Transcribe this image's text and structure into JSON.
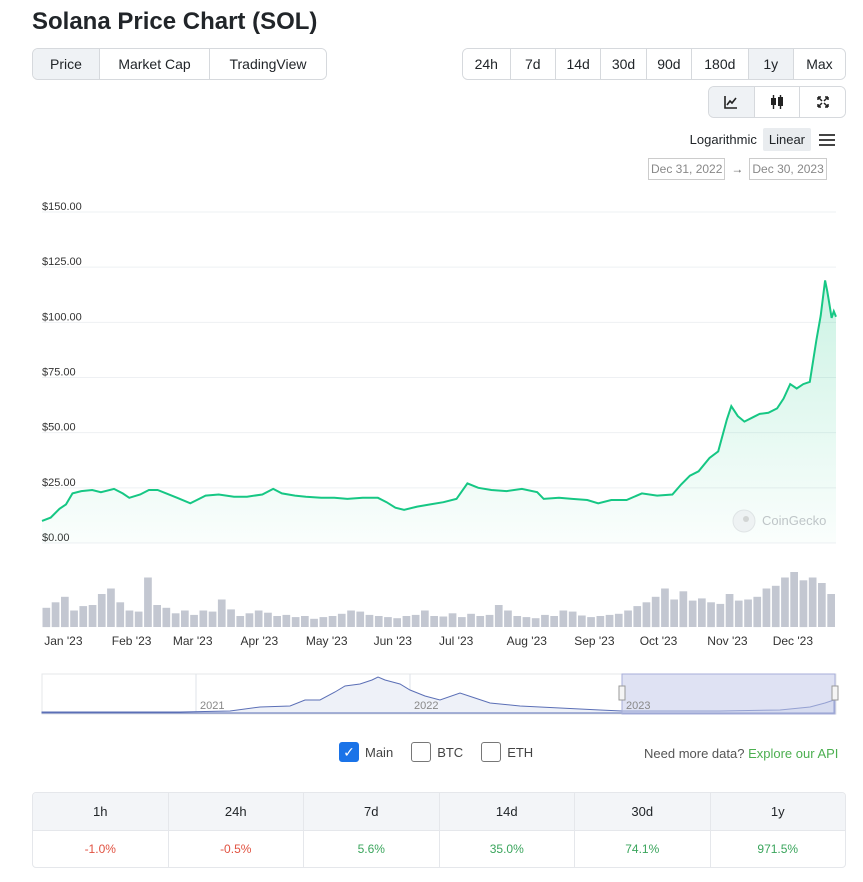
{
  "title": "Solana Price Chart (SOL)",
  "view_tabs": [
    "Price",
    "Market Cap",
    "TradingView"
  ],
  "view_active": 0,
  "range_tabs": [
    "24h",
    "7d",
    "14d",
    "30d",
    "90d",
    "180d",
    "1y",
    "Max"
  ],
  "range_active": 6,
  "chart_type_icons": [
    "line-chart-icon",
    "candlestick-icon",
    "fullscreen-icon"
  ],
  "scale": {
    "logarithmic": "Logarithmic",
    "linear": "Linear",
    "active": "Linear"
  },
  "date_range": {
    "from": "Dec 31, 2022",
    "arrow": "→",
    "to": "Dec 30, 2023"
  },
  "watermark": "CoinGecko",
  "chart_data": {
    "type": "area",
    "title": "",
    "xlabel": "",
    "ylabel": "",
    "y_ticks": [
      "$150.00",
      "$125.00",
      "$100.00",
      "$75.00",
      "$50.00",
      "$25.00",
      "$0.00"
    ],
    "ylim": [
      0,
      150
    ],
    "x_ticks": [
      "Jan '23",
      "Feb '23",
      "Mar '23",
      "Apr '23",
      "May '23",
      "Jun '23",
      "Jul '23",
      "Aug '23",
      "Sep '23",
      "Oct '23",
      "Nov '23",
      "Dec '23"
    ],
    "x_start": "2022-12-31",
    "x_end": "2023-12-30",
    "line_color": "#16c784",
    "series": [
      {
        "points": [
          [
            "2022-12-31",
            10.0
          ],
          [
            "2023-01-04",
            11.5
          ],
          [
            "2023-01-08",
            15.5
          ],
          [
            "2023-01-11",
            17.5
          ],
          [
            "2023-01-14",
            22.5
          ],
          [
            "2023-01-18",
            23.5
          ],
          [
            "2023-01-23",
            24.0
          ],
          [
            "2023-01-27",
            23.0
          ],
          [
            "2023-02-02",
            24.5
          ],
          [
            "2023-02-06",
            22.5
          ],
          [
            "2023-02-09",
            20.5
          ],
          [
            "2023-02-14",
            22.0
          ],
          [
            "2023-02-18",
            24.0
          ],
          [
            "2023-02-22",
            24.0
          ],
          [
            "2023-02-26",
            22.5
          ],
          [
            "2023-03-03",
            20.5
          ],
          [
            "2023-03-09",
            18.0
          ],
          [
            "2023-03-12",
            19.5
          ],
          [
            "2023-03-16",
            21.5
          ],
          [
            "2023-03-22",
            22.0
          ],
          [
            "2023-03-29",
            21.0
          ],
          [
            "2023-04-04",
            21.0
          ],
          [
            "2023-04-11",
            22.0
          ],
          [
            "2023-04-16",
            24.5
          ],
          [
            "2023-04-20",
            22.5
          ],
          [
            "2023-04-26",
            21.5
          ],
          [
            "2023-05-01",
            21.0
          ],
          [
            "2023-05-08",
            20.5
          ],
          [
            "2023-05-14",
            20.5
          ],
          [
            "2023-05-20",
            20.0
          ],
          [
            "2023-05-27",
            20.5
          ],
          [
            "2023-06-03",
            20.5
          ],
          [
            "2023-06-07",
            18.5
          ],
          [
            "2023-06-11",
            16.0
          ],
          [
            "2023-06-15",
            15.0
          ],
          [
            "2023-06-21",
            16.5
          ],
          [
            "2023-06-27",
            17.5
          ],
          [
            "2023-07-03",
            18.5
          ],
          [
            "2023-07-09",
            20.0
          ],
          [
            "2023-07-14",
            27.0
          ],
          [
            "2023-07-19",
            25.0
          ],
          [
            "2023-07-25",
            24.0
          ],
          [
            "2023-08-01",
            23.5
          ],
          [
            "2023-08-08",
            24.5
          ],
          [
            "2023-08-15",
            23.0
          ],
          [
            "2023-08-18",
            20.0
          ],
          [
            "2023-08-25",
            20.5
          ],
          [
            "2023-08-31",
            20.0
          ],
          [
            "2023-09-07",
            19.5
          ],
          [
            "2023-09-12",
            18.0
          ],
          [
            "2023-09-18",
            19.5
          ],
          [
            "2023-09-25",
            19.5
          ],
          [
            "2023-10-02",
            22.5
          ],
          [
            "2023-10-09",
            21.5
          ],
          [
            "2023-10-16",
            22.0
          ],
          [
            "2023-10-20",
            26.5
          ],
          [
            "2023-10-24",
            30.5
          ],
          [
            "2023-10-28",
            32.5
          ],
          [
            "2023-11-02",
            38.5
          ],
          [
            "2023-11-06",
            41.5
          ],
          [
            "2023-11-10",
            56.0
          ],
          [
            "2023-11-12",
            62.0
          ],
          [
            "2023-11-15",
            57.5
          ],
          [
            "2023-11-18",
            55.0
          ],
          [
            "2023-11-22",
            57.0
          ],
          [
            "2023-11-25",
            58.5
          ],
          [
            "2023-11-29",
            59.0
          ],
          [
            "2023-12-03",
            61.0
          ],
          [
            "2023-12-06",
            65.5
          ],
          [
            "2023-12-09",
            72.0
          ],
          [
            "2023-12-12",
            70.0
          ],
          [
            "2023-12-15",
            72.0
          ],
          [
            "2023-12-18",
            73.0
          ],
          [
            "2023-12-21",
            92.0
          ],
          [
            "2023-12-23",
            103.0
          ],
          [
            "2023-12-25",
            119.0
          ],
          [
            "2023-12-26",
            114.0
          ],
          [
            "2023-12-27",
            108.0
          ],
          [
            "2023-12-28",
            102.0
          ],
          [
            "2023-12-29",
            105.0
          ],
          [
            "2023-12-30",
            102.5
          ]
        ]
      }
    ],
    "grid": true,
    "volume": {
      "color": "#c3c7d1",
      "relative_heights": [
        0.35,
        0.45,
        0.55,
        0.3,
        0.38,
        0.4,
        0.6,
        0.7,
        0.45,
        0.3,
        0.28,
        0.9,
        0.4,
        0.35,
        0.25,
        0.3,
        0.22,
        0.3,
        0.28,
        0.5,
        0.32,
        0.2,
        0.25,
        0.3,
        0.26,
        0.2,
        0.22,
        0.18,
        0.2,
        0.15,
        0.18,
        0.2,
        0.24,
        0.3,
        0.28,
        0.22,
        0.2,
        0.18,
        0.16,
        0.2,
        0.22,
        0.3,
        0.2,
        0.19,
        0.25,
        0.18,
        0.24,
        0.2,
        0.22,
        0.4,
        0.3,
        0.2,
        0.18,
        0.16,
        0.22,
        0.2,
        0.3,
        0.28,
        0.21,
        0.18,
        0.2,
        0.22,
        0.24,
        0.3,
        0.38,
        0.45,
        0.55,
        0.7,
        0.5,
        0.65,
        0.48,
        0.52,
        0.45,
        0.42,
        0.6,
        0.48,
        0.5,
        0.55,
        0.7,
        0.75,
        0.9,
        1.0,
        0.85,
        0.9,
        0.8,
        0.6
      ]
    }
  },
  "navigator": {
    "labels": [
      "2021",
      "2022",
      "2023"
    ]
  },
  "toggles": [
    {
      "label": "Main",
      "checked": true
    },
    {
      "label": "BTC",
      "checked": false
    },
    {
      "label": "ETH",
      "checked": false
    }
  ],
  "api_text": "Need more data?",
  "api_link": "Explore our API",
  "perf": {
    "headers": [
      "1h",
      "24h",
      "7d",
      "14d",
      "30d",
      "1y"
    ],
    "values": [
      "-1.0%",
      "-0.5%",
      "5.6%",
      "35.0%",
      "74.1%",
      "971.5%"
    ],
    "colors": [
      "#e15241",
      "#e15241",
      "#3aa55c",
      "#3aa55c",
      "#3aa55c",
      "#3aa55c"
    ]
  }
}
